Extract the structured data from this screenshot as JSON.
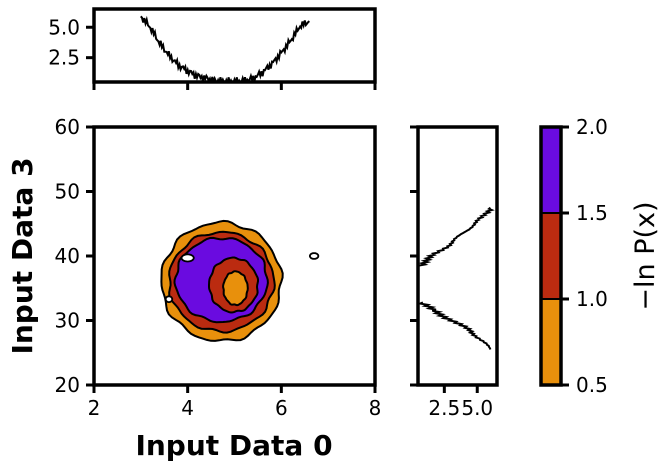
{
  "chart_data": [
    {
      "id": "main",
      "type": "contour",
      "xlabel": "Input Data 0",
      "ylabel": "Input Data 3",
      "xlim": [
        2,
        8
      ],
      "ylim": [
        20,
        60
      ],
      "xticks": [
        "2",
        "4",
        "6",
        "8"
      ],
      "yticks": [
        "20",
        "30",
        "40",
        "50",
        "60"
      ],
      "center": [
        4.8,
        37
      ],
      "levels": [
        {
          "value": 0.5,
          "color": "#e8900c",
          "rx": 1.28,
          "ry": 9.2,
          "cx": 4.72,
          "cy": 36.0
        },
        {
          "value": 1.0,
          "color": "#bb2b10",
          "rx": 1.12,
          "ry": 7.7,
          "cx": 4.72,
          "cy": 36.0
        },
        {
          "value": 1.5,
          "color": "#6a0be0",
          "rx": 0.98,
          "ry": 6.5,
          "cx": 4.72,
          "cy": 36.3
        },
        {
          "value": 1.5,
          "color": "#bb2b10",
          "rx": 0.52,
          "ry": 4.2,
          "cx": 4.98,
          "cy": 35.5
        },
        {
          "value": 1.0,
          "color": "#e8900c",
          "rx": 0.26,
          "ry": 2.6,
          "cx": 5.02,
          "cy": 35.0
        }
      ],
      "islands": [
        {
          "cx": 4.0,
          "cy": 39.7,
          "rx": 0.13,
          "ry": 0.55
        },
        {
          "cx": 3.6,
          "cy": 33.3,
          "rx": 0.07,
          "ry": 0.45
        },
        {
          "cx": 6.7,
          "cy": 40.0,
          "rx": 0.09,
          "ry": 0.45
        }
      ]
    },
    {
      "id": "top-marginal",
      "type": "line",
      "yticks": [
        "2.5",
        "5.0"
      ],
      "ylim": [
        0.5,
        6.5
      ],
      "x": [
        3.0,
        3.2,
        3.4,
        3.6,
        3.8,
        4.0,
        4.2,
        4.4,
        4.6,
        4.8,
        5.0,
        5.2,
        5.4,
        5.6,
        5.8,
        6.0,
        6.2,
        6.4,
        6.6
      ],
      "y": [
        5.9,
        5.0,
        3.7,
        2.7,
        1.9,
        1.4,
        1.0,
        0.8,
        0.6,
        0.55,
        0.55,
        0.6,
        0.8,
        1.3,
        2.0,
        2.9,
        3.9,
        5.1,
        5.5
      ]
    },
    {
      "id": "right-marginal",
      "type": "line",
      "xticks": [
        "2.5",
        "5.0"
      ],
      "xlim": [
        0.5,
        6.5
      ],
      "y": [
        25.5,
        27.0,
        28.5,
        30.0,
        31.5,
        33.0,
        38.5,
        40.0,
        41.5,
        43.0,
        44.5,
        46.0,
        47.5
      ],
      "x": [
        6.0,
        5.3,
        4.4,
        3.1,
        1.7,
        0.6,
        0.6,
        1.6,
        2.7,
        3.6,
        4.5,
        5.4,
        6.0
      ]
    },
    {
      "id": "colorbar",
      "type": "colorbar",
      "label": "−ln P(x)",
      "ticks": [
        "0.5",
        "1.0",
        "1.5",
        "2.0"
      ],
      "bounds": [
        0.5,
        1.0,
        1.5,
        2.0
      ],
      "colors": [
        "#e8900c",
        "#bb2b10",
        "#6a0be0"
      ]
    }
  ]
}
